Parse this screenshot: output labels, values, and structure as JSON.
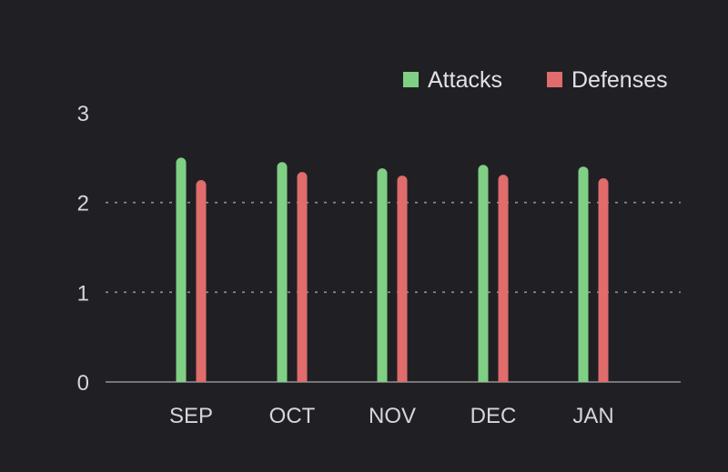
{
  "chart_data": {
    "type": "bar",
    "categories": [
      "SEP",
      "OCT",
      "NOV",
      "DEC",
      "JAN"
    ],
    "series": [
      {
        "name": "Attacks",
        "color": "#7fcf84",
        "values": [
          2.5,
          2.45,
          2.38,
          2.42,
          2.4
        ]
      },
      {
        "name": "Defenses",
        "color": "#e06c6c",
        "values": [
          2.25,
          2.34,
          2.3,
          2.31,
          2.27
        ]
      }
    ],
    "ylim": [
      0,
      3
    ],
    "yticks": [
      "0",
      "1",
      "2",
      "3"
    ],
    "grid": true,
    "legend_position": "top-right",
    "colors": {
      "background": "#202024",
      "text": "#d6d6da",
      "grid": "#8f8f95"
    }
  }
}
